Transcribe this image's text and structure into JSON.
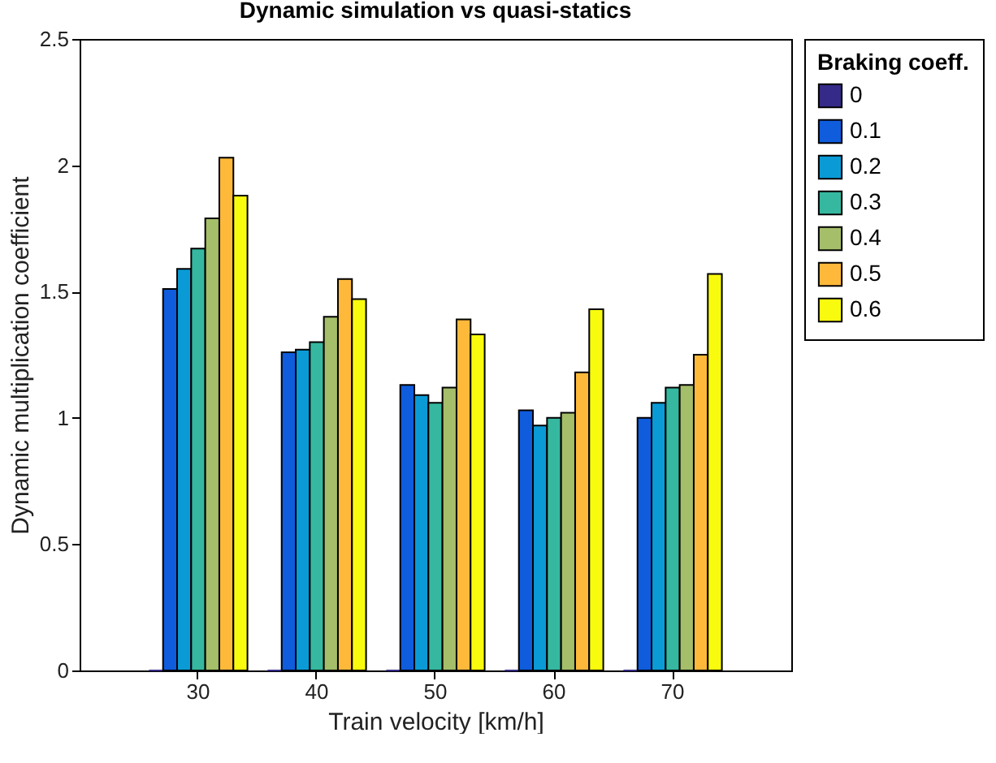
{
  "chart_data": {
    "type": "bar",
    "title": "Dynamic simulation vs quasi-statics",
    "xlabel": "Train velocity [km/h]",
    "ylabel": "Dynamic multiplication coefficient",
    "legend_title": "Braking coeff.",
    "categories": [
      "30",
      "40",
      "50",
      "60",
      "70"
    ],
    "series": [
      {
        "name": "0",
        "color": "#352a87",
        "values": [
          0,
          0,
          0,
          0,
          0
        ]
      },
      {
        "name": "0.1",
        "color": "#0f5cdd",
        "values": [
          1.51,
          1.26,
          1.13,
          1.03,
          1.0
        ]
      },
      {
        "name": "0.2",
        "color": "#0a9bd6",
        "values": [
          1.59,
          1.27,
          1.09,
          0.97,
          1.06
        ]
      },
      {
        "name": "0.3",
        "color": "#36b8a0",
        "values": [
          1.67,
          1.3,
          1.06,
          1.0,
          1.12
        ]
      },
      {
        "name": "0.4",
        "color": "#a5be6a",
        "values": [
          1.79,
          1.4,
          1.12,
          1.02,
          1.13
        ]
      },
      {
        "name": "0.5",
        "color": "#ffb93a",
        "values": [
          2.03,
          1.55,
          1.39,
          1.18,
          1.25
        ]
      },
      {
        "name": "0.6",
        "color": "#f9fb0e",
        "values": [
          1.88,
          1.47,
          1.33,
          1.43,
          1.57
        ]
      }
    ],
    "ylim": [
      0,
      2.5
    ],
    "yticks": [
      0,
      0.5,
      1,
      1.5,
      2,
      2.5
    ],
    "grid": false,
    "legend": "right"
  }
}
